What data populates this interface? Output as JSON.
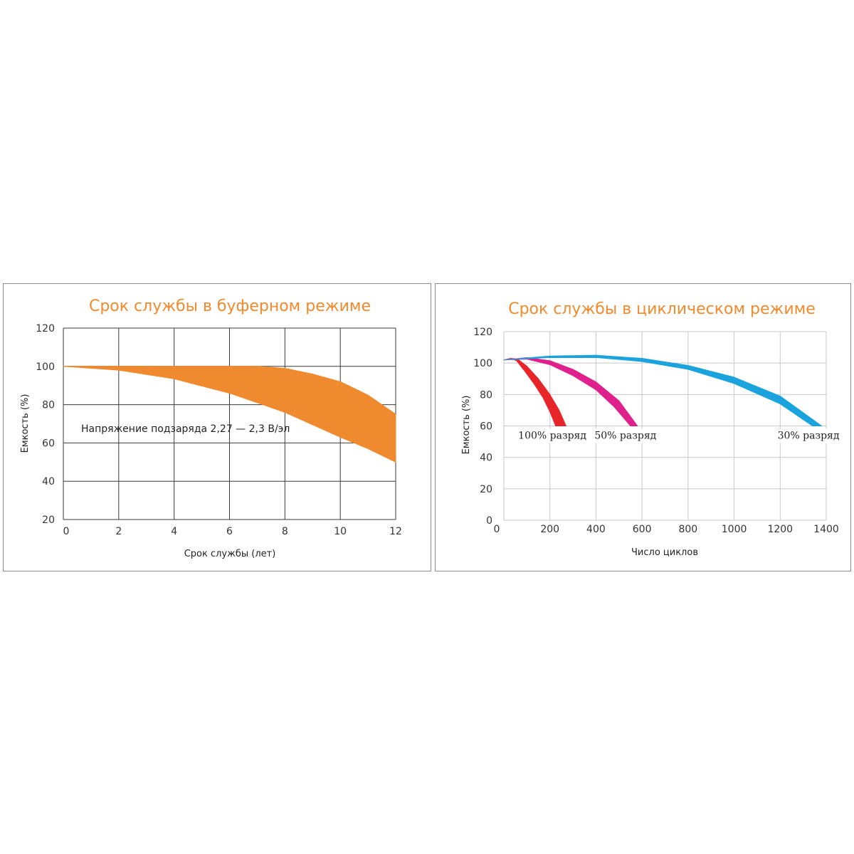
{
  "chart_data": [
    {
      "type": "area",
      "title": "Срок службы в буферном режиме",
      "xlabel": "Срок службы (лет)",
      "ylabel": "Емкость (%)",
      "xlim": [
        0,
        12
      ],
      "ylim": [
        20,
        120
      ],
      "xticks": [
        0,
        2,
        4,
        6,
        8,
        10,
        12
      ],
      "yticks": [
        20,
        40,
        60,
        80,
        100,
        120
      ],
      "grid": true,
      "annotation": "Напряжение подзаряда 2,27 — 2,3 В/эл",
      "color": "#f08a2e",
      "band": {
        "upper": [
          [
            0,
            100
          ],
          [
            7,
            100
          ],
          [
            8,
            99
          ],
          [
            9,
            96
          ],
          [
            10,
            92
          ],
          [
            11,
            85
          ],
          [
            12,
            75
          ]
        ],
        "lower": [
          [
            0,
            100
          ],
          [
            2,
            98
          ],
          [
            4,
            93.5
          ],
          [
            6,
            86
          ],
          [
            8,
            76
          ],
          [
            10,
            63
          ],
          [
            11,
            57
          ],
          [
            12,
            50
          ]
        ]
      }
    },
    {
      "type": "area",
      "title": "Срок службы в циклическом режиме",
      "xlabel": "Число циклов",
      "ylabel": "Емкость (%)",
      "xlim": [
        0,
        1400
      ],
      "ylim": [
        0,
        120
      ],
      "xticks": [
        0,
        200,
        400,
        600,
        800,
        1000,
        1200,
        1400
      ],
      "yticks": [
        0,
        20,
        40,
        60,
        80,
        100,
        120
      ],
      "grid": true,
      "series": [
        {
          "name": "100% разряд",
          "color": "#e8262a",
          "upper": [
            [
              0,
              102
            ],
            [
              30,
              103
            ],
            [
              60,
              102.5
            ],
            [
              100,
              98
            ],
            [
              150,
              90
            ],
            [
              200,
              80
            ],
            [
              240,
              70
            ],
            [
              270,
              60
            ]
          ],
          "lower": [
            [
              0,
              102
            ],
            [
              30,
              103
            ],
            [
              55,
              101.5
            ],
            [
              90,
              95
            ],
            [
              130,
              87
            ],
            [
              170,
              78
            ],
            [
              200,
              69
            ],
            [
              225,
              60
            ]
          ]
        },
        {
          "name": "50% разряд",
          "color": "#e0208c",
          "upper": [
            [
              0,
              102
            ],
            [
              100,
              103.5
            ],
            [
              200,
              101.5
            ],
            [
              300,
              96
            ],
            [
              400,
              88
            ],
            [
              500,
              76
            ],
            [
              580,
              60
            ]
          ],
          "lower": [
            [
              0,
              102
            ],
            [
              100,
              102.5
            ],
            [
              200,
              99
            ],
            [
              300,
              92
            ],
            [
              400,
              83
            ],
            [
              480,
              72
            ],
            [
              550,
              60
            ]
          ]
        },
        {
          "name": "30% разряд",
          "color": "#1aa3dc",
          "upper": [
            [
              0,
              102
            ],
            [
              200,
              104.5
            ],
            [
              400,
              105
            ],
            [
              600,
              103
            ],
            [
              800,
              98.5
            ],
            [
              1000,
              91
            ],
            [
              1200,
              79
            ],
            [
              1380,
              60
            ]
          ],
          "lower": [
            [
              0,
              102
            ],
            [
              200,
              103.5
            ],
            [
              400,
              103.5
            ],
            [
              600,
              101
            ],
            [
              800,
              96
            ],
            [
              1000,
              87
            ],
            [
              1200,
              74
            ],
            [
              1340,
              60
            ]
          ]
        }
      ]
    }
  ]
}
